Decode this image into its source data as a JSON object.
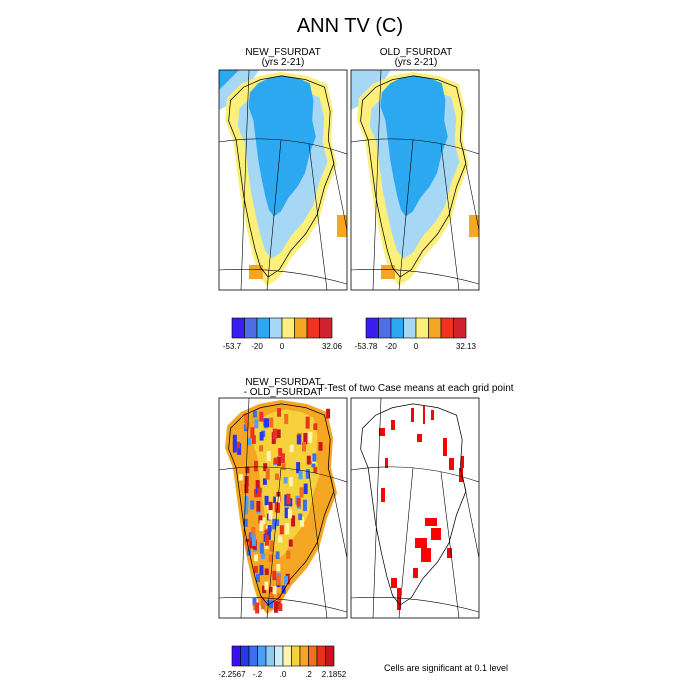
{
  "title": "ANN TV (C)",
  "panels": [
    {
      "title": "NEW_FSURDAT",
      "subtitle": "(yrs 2-21)"
    },
    {
      "title": "OLD_FSURDAT",
      "subtitle": "(yrs 2-21)"
    },
    {
      "title": "NEW_FSURDAT",
      "subtitle": "- OLD_FSURDAT"
    },
    {
      "title": "T-Test of two Case means at each grid point"
    }
  ],
  "colorbars": [
    {
      "colors": [
        "#3a1ef0",
        "#4f6ee6",
        "#2ba8f0",
        "#a6d8f5",
        "#fdf07a",
        "#f5a623",
        "#f0321e",
        "#d2222e"
      ],
      "labels": [
        "-53.7",
        "-20",
        "0",
        "32.06"
      ]
    },
    {
      "colors": [
        "#3a1ef0",
        "#4f6ee6",
        "#2ba8f0",
        "#a6d8f5",
        "#fdf07a",
        "#f5a623",
        "#f0321e",
        "#d2222e"
      ],
      "labels": [
        "-53.78",
        "-20",
        "0",
        "32.13"
      ]
    },
    {
      "colors": [
        "#3a10f0",
        "#2838e8",
        "#3c6ef0",
        "#4fa0f5",
        "#8ccdf5",
        "#d2ecf8",
        "#fff5b0",
        "#f5d23c",
        "#f5a623",
        "#f06e1e",
        "#e8321e",
        "#c8141e"
      ],
      "labels": [
        "-2.2567",
        "-.2",
        ".0",
        ".2",
        "2.1852"
      ]
    }
  ],
  "note": "Cells are significant at 0.1 level"
}
